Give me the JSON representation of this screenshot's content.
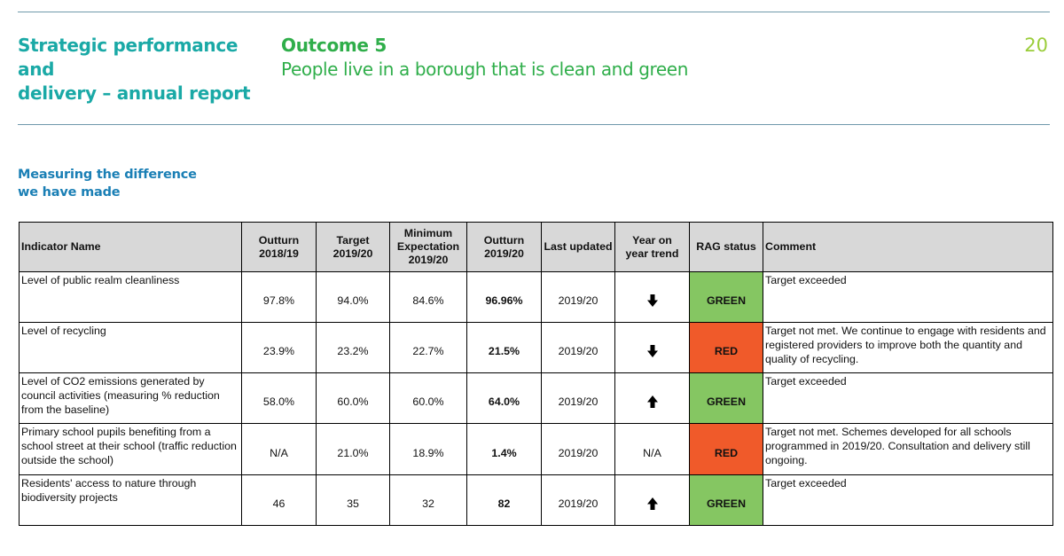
{
  "header": {
    "report_title_line1": "Strategic performance and",
    "report_title_line2": "delivery – annual report",
    "outcome_label": "Outcome 5",
    "outcome_description": "People live in a borough that is clean and green",
    "page_number": "20"
  },
  "section": {
    "heading_line1": "Measuring the difference",
    "heading_line2": "we have made"
  },
  "table": {
    "headers": {
      "indicator": "Indicator Name",
      "outturn_prev_l1": "Outturn",
      "outturn_prev_l2": "2018/19",
      "target_l1": "Target",
      "target_l2": "2019/20",
      "minexp_l1": "Minimum",
      "minexp_l2": "Expectation",
      "minexp_l3": "2019/20",
      "outturn_l1": "Outturn",
      "outturn_l2": "2019/20",
      "last_updated": "Last updated",
      "trend_l1": "Year on",
      "trend_l2": "year trend",
      "rag": "RAG status",
      "comment": "Comment"
    },
    "rows": [
      {
        "indicator": "Level of public realm cleanliness",
        "outturn_prev": "97.8%",
        "target": "94.0%",
        "min_expectation": "84.6%",
        "outturn": "96.96%",
        "last_updated": "2019/20",
        "trend": "down",
        "trend_icon": "arrow-down-icon",
        "rag": "GREEN",
        "comment": "Target exceeded"
      },
      {
        "indicator": "Level of recycling",
        "outturn_prev": "23.9%",
        "target": "23.2%",
        "min_expectation": "22.7%",
        "outturn": "21.5%",
        "last_updated": "2019/20",
        "trend": "down",
        "trend_icon": "arrow-down-icon",
        "rag": "RED",
        "comment": "Target not met.  We continue to engage with residents and registered providers to improve both the quantity and quality of recycling."
      },
      {
        "indicator": "Level of CO2 emissions generated by council activities (measuring % reduction from the baseline)",
        "outturn_prev": "58.0%",
        "target": "60.0%",
        "min_expectation": "60.0%",
        "outturn": "64.0%",
        "last_updated": "2019/20",
        "trend": "up",
        "trend_icon": "arrow-up-icon",
        "rag": "GREEN",
        "comment": "Target exceeded"
      },
      {
        "indicator": "Primary school pupils benefiting from a school street at their school (traffic reduction outside the school)",
        "outturn_prev": "N/A",
        "target": "21.0%",
        "min_expectation": "18.9%",
        "outturn": "1.4%",
        "last_updated": "2019/20",
        "trend": "N/A",
        "trend_icon": "",
        "rag": "RED",
        "comment": "Target not met.  Schemes developed for all schools programmed in 2019/20.  Consultation and delivery still ongoing."
      },
      {
        "indicator": "Residents' access to nature through biodiversity projects",
        "outturn_prev": "46",
        "target": "35",
        "min_expectation": "32",
        "outturn": "82",
        "last_updated": "2019/20",
        "trend": "up",
        "trend_icon": "arrow-up-icon",
        "rag": "GREEN",
        "comment": "Target exceeded"
      }
    ]
  },
  "colors": {
    "title_teal": "#1aa9a6",
    "outcome_green": "#2fae4a",
    "page_number_lime": "#9acd3a",
    "section_blue": "#1a7fb5",
    "rag_green": "#85c662",
    "rag_red": "#f05a2a",
    "header_grey": "#d8d8d8"
  }
}
